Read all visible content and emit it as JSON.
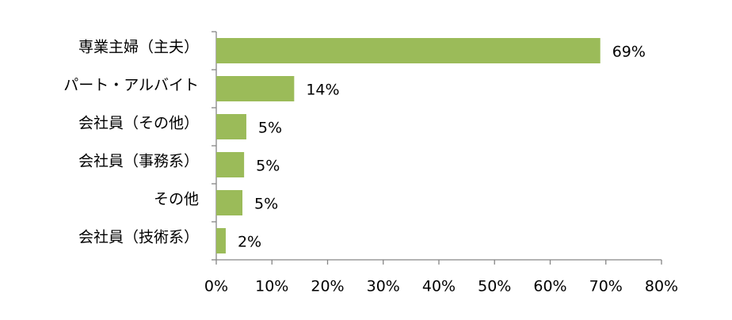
{
  "chart_data": {
    "type": "bar",
    "orientation": "horizontal",
    "categories": [
      "専業主婦（主夫）",
      "パート・アルバイト",
      "会社員（その他）",
      "会社員（事務系）",
      "その他",
      "会社員（技術系）"
    ],
    "values": [
      69,
      14,
      5.4,
      5,
      4.7,
      1.7
    ],
    "value_labels": [
      "69%",
      "14%",
      "5%",
      "5%",
      "5%",
      "2%"
    ],
    "color": "#9bbb59",
    "xlim": [
      0,
      80
    ],
    "xticks": [
      {
        "value": 0,
        "label": "0%"
      },
      {
        "value": 10,
        "label": "10%"
      },
      {
        "value": 20,
        "label": "20%"
      },
      {
        "value": 30,
        "label": "30%"
      },
      {
        "value": 40,
        "label": "40%"
      },
      {
        "value": 50,
        "label": "50%"
      },
      {
        "value": 60,
        "label": "60%"
      },
      {
        "value": 70,
        "label": "70%"
      },
      {
        "value": 80,
        "label": "80%"
      }
    ],
    "grid": false
  }
}
